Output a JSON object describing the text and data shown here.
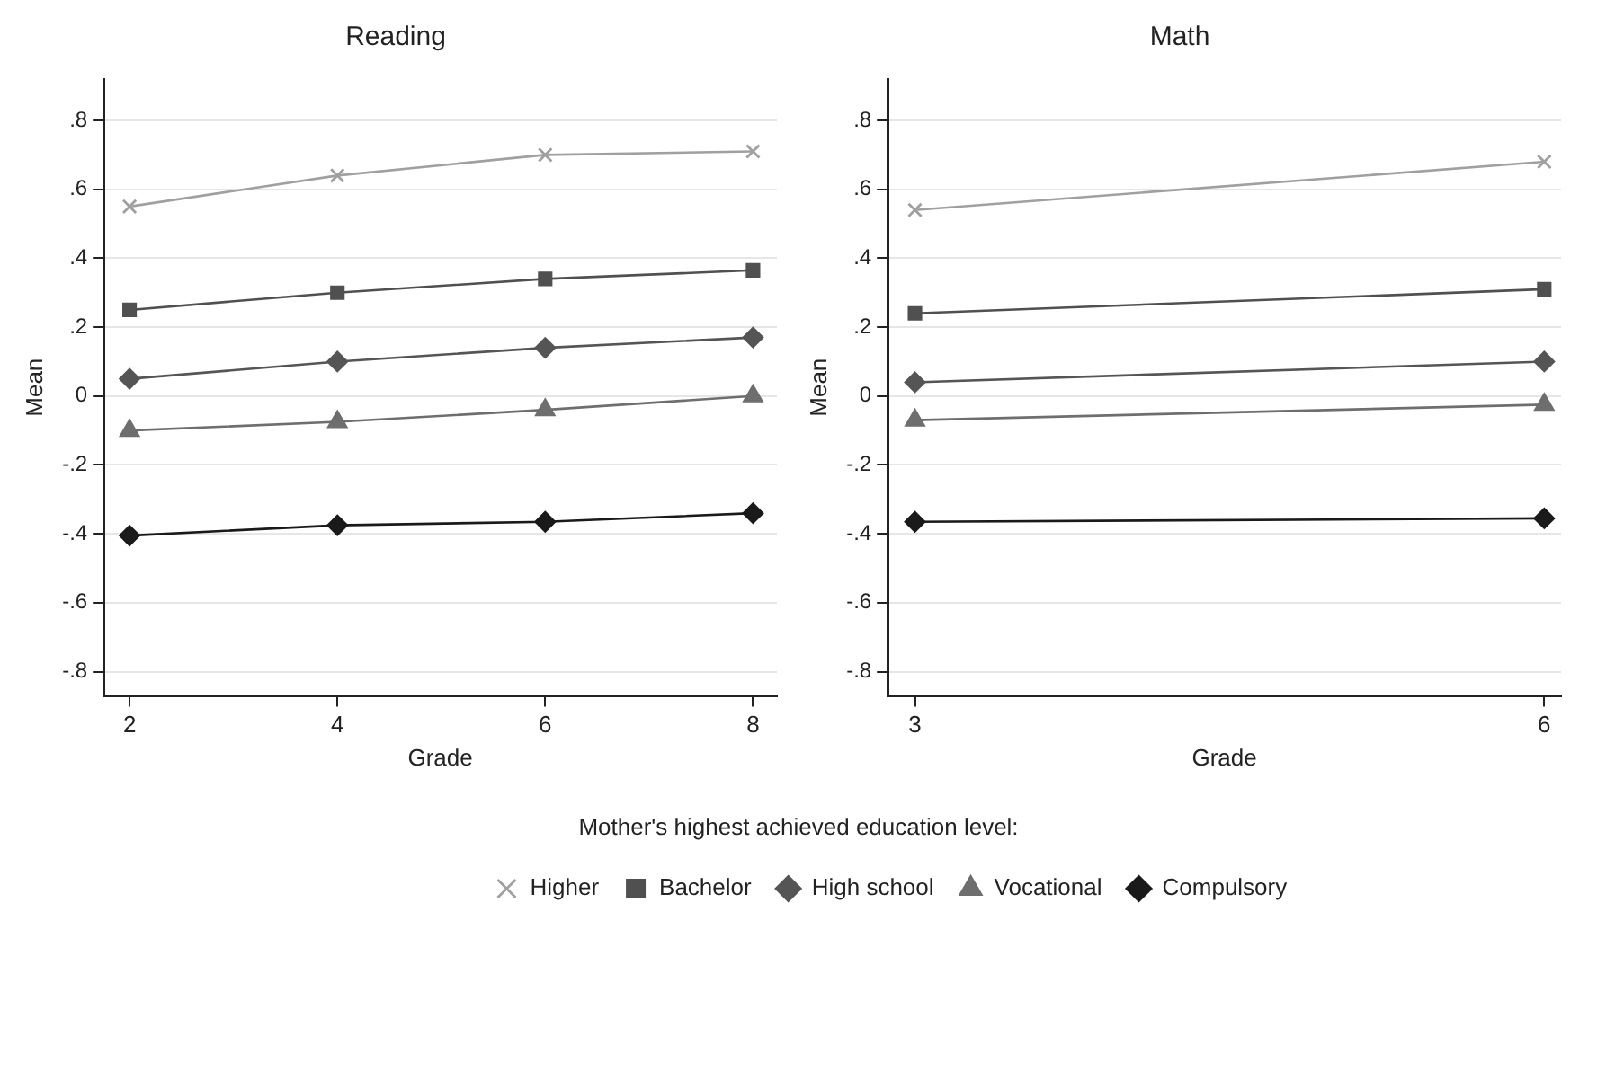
{
  "chart_data": [
    {
      "type": "line",
      "title": "Reading",
      "xlabel": "Grade",
      "ylabel": "Mean",
      "legend_title": "Mother's highest achieved education level:",
      "legend": "bottom",
      "grid": "y",
      "line_style": "solid",
      "x": [
        2,
        4,
        6,
        8
      ],
      "xlim": [
        1.75,
        8.23
      ],
      "xticks": [
        2,
        4,
        6,
        8
      ],
      "ylim": [
        -0.87,
        0.92
      ],
      "yticks": [
        {
          "value": -0.8,
          "label": "-.8"
        },
        {
          "value": -0.6,
          "label": "-.6"
        },
        {
          "value": -0.4,
          "label": "-.4"
        },
        {
          "value": -0.2,
          "label": "-.2"
        },
        0,
        {
          "value": 0.2,
          "label": ".2"
        },
        {
          "value": 0.4,
          "label": ".4"
        },
        {
          "value": 0.6,
          "label": ".6"
        },
        {
          "value": 0.8,
          "label": ".8"
        }
      ],
      "series": [
        {
          "name": "Higher",
          "color": "#a0a0a0",
          "marker": "cross",
          "values": [
            0.55,
            0.64,
            0.7,
            0.71
          ]
        },
        {
          "name": "Bachelor",
          "color": "#505050",
          "marker": "square",
          "values": [
            0.25,
            0.3,
            0.34,
            0.365
          ]
        },
        {
          "name": "High school",
          "color": "#555555",
          "marker": "diamond",
          "values": [
            0.05,
            0.1,
            0.14,
            0.17
          ]
        },
        {
          "name": "Vocational",
          "color": "#6e6e6e",
          "marker": "triangle",
          "values": [
            -0.1,
            -0.075,
            -0.04,
            0.0
          ]
        },
        {
          "name": "Compulsory",
          "color": "#1a1a1a",
          "marker": "diamond",
          "values": [
            -0.405,
            -0.375,
            -0.365,
            -0.34
          ]
        }
      ]
    },
    {
      "type": "line",
      "title": "Math",
      "xlabel": "Grade",
      "ylabel": "Mean",
      "grid": "y",
      "line_style": "solid",
      "x": [
        3,
        6
      ],
      "xlim": [
        2.87,
        6.08
      ],
      "xticks": [
        3,
        6
      ],
      "ylim": [
        -0.87,
        0.92
      ],
      "yticks": [
        {
          "value": -0.8,
          "label": "-.8"
        },
        {
          "value": -0.6,
          "label": "-.6"
        },
        {
          "value": -0.4,
          "label": "-.4"
        },
        {
          "value": -0.2,
          "label": "-.2"
        },
        0,
        {
          "value": 0.2,
          "label": ".2"
        },
        {
          "value": 0.4,
          "label": ".4"
        },
        {
          "value": 0.6,
          "label": ".6"
        },
        {
          "value": 0.8,
          "label": ".8"
        }
      ],
      "series": [
        {
          "color": "#a0a0a0",
          "marker": "cross",
          "values": [
            0.54,
            0.68
          ]
        },
        {
          "color": "#505050",
          "marker": "square",
          "values": [
            0.24,
            0.31
          ]
        },
        {
          "color": "#555555",
          "marker": "diamond",
          "values": [
            0.04,
            0.1
          ]
        },
        {
          "color": "#6e6e6e",
          "marker": "triangle",
          "values": [
            -0.07,
            -0.025
          ]
        },
        {
          "color": "#1a1a1a",
          "marker": "diamond",
          "values": [
            -0.365,
            -0.355
          ]
        }
      ]
    }
  ]
}
